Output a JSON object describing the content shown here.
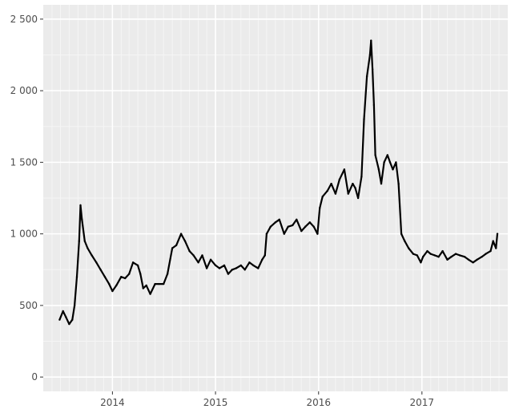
{
  "chart_data": {
    "type": "line",
    "title": "",
    "xlabel": "",
    "ylabel": "",
    "grid": true,
    "legend": "none",
    "xlim": [
      "2013-05-01",
      "2017-11-01"
    ],
    "ylim": [
      -100,
      2600
    ],
    "y_ticks": [
      0,
      500,
      1000,
      1500,
      2000,
      2500
    ],
    "y_tick_labels": [
      "0",
      "500",
      "1 000",
      "1 500",
      "2 000",
      "2 500"
    ],
    "x_ticks": [
      "2014-01-01",
      "2015-01-01",
      "2016-01-01",
      "2017-01-01"
    ],
    "x_tick_labels": [
      "2014",
      "2015",
      "2016",
      "2017"
    ],
    "colors": {
      "panel": "#ebebeb",
      "grid_major": "#ffffff",
      "grid_minor": "#f5f5f5",
      "line": "#000000",
      "tick_text": "#4d4d4d"
    },
    "series": [
      {
        "x": [
          "2013-06-28",
          "2013-07-10",
          "2013-07-20",
          "2013-08-01",
          "2013-08-12",
          "2013-08-20",
          "2013-08-28",
          "2013-09-05",
          "2013-09-10",
          "2013-09-15",
          "2013-09-25",
          "2013-10-05",
          "2013-10-20",
          "2013-11-05",
          "2013-11-20",
          "2013-12-05",
          "2013-12-20",
          "2014-01-01",
          "2014-01-15",
          "2014-02-01",
          "2014-02-15",
          "2014-03-01",
          "2014-03-15",
          "2014-04-01",
          "2014-04-10",
          "2014-04-20",
          "2014-05-01",
          "2014-05-15",
          "2014-06-01",
          "2014-06-15",
          "2014-07-01",
          "2014-07-15",
          "2014-08-01",
          "2014-08-15",
          "2014-09-01",
          "2014-09-15",
          "2014-10-01",
          "2014-10-15",
          "2014-11-01",
          "2014-11-15",
          "2014-12-01",
          "2014-12-15",
          "2015-01-01",
          "2015-01-15",
          "2015-02-01",
          "2015-02-15",
          "2015-03-01",
          "2015-03-15",
          "2015-04-01",
          "2015-04-15",
          "2015-05-01",
          "2015-05-15",
          "2015-06-01",
          "2015-06-15",
          "2015-06-25",
          "2015-07-01",
          "2015-07-15",
          "2015-08-01",
          "2015-08-15",
          "2015-09-01",
          "2015-09-15",
          "2015-10-01",
          "2015-10-15",
          "2015-11-01",
          "2015-11-15",
          "2015-12-01",
          "2015-12-15",
          "2015-12-28",
          "2016-01-05",
          "2016-01-15",
          "2016-02-01",
          "2016-02-15",
          "2016-03-01",
          "2016-03-15",
          "2016-04-01",
          "2016-04-15",
          "2016-05-01",
          "2016-05-10",
          "2016-05-20",
          "2016-06-01",
          "2016-06-10",
          "2016-06-20",
          "2016-07-01",
          "2016-07-05",
          "2016-07-10",
          "2016-07-15",
          "2016-07-20",
          "2016-08-01",
          "2016-08-10",
          "2016-08-20",
          "2016-09-01",
          "2016-09-10",
          "2016-09-20",
          "2016-10-01",
          "2016-10-10",
          "2016-10-20",
          "2016-11-01",
          "2016-11-15",
          "2016-12-01",
          "2016-12-15",
          "2016-12-28",
          "2017-01-05",
          "2017-01-20",
          "2017-02-01",
          "2017-02-15",
          "2017-03-01",
          "2017-03-15",
          "2017-04-01",
          "2017-04-15",
          "2017-05-01",
          "2017-05-15",
          "2017-06-01",
          "2017-06-15",
          "2017-07-01",
          "2017-07-15",
          "2017-08-01",
          "2017-08-15",
          "2017-09-01",
          "2017-09-10",
          "2017-09-20",
          "2017-09-25"
        ],
        "y": [
          400,
          460,
          420,
          370,
          400,
          500,
          700,
          950,
          1200,
          1100,
          950,
          900,
          850,
          800,
          750,
          700,
          650,
          600,
          640,
          700,
          690,
          720,
          800,
          780,
          720,
          620,
          640,
          580,
          650,
          650,
          650,
          720,
          900,
          920,
          1000,
          950,
          880,
          850,
          800,
          850,
          760,
          820,
          780,
          760,
          780,
          720,
          750,
          760,
          780,
          750,
          800,
          780,
          760,
          820,
          850,
          1000,
          1050,
          1080,
          1100,
          1000,
          1050,
          1060,
          1100,
          1020,
          1050,
          1080,
          1050,
          1000,
          1180,
          1260,
          1300,
          1350,
          1280,
          1380,
          1450,
          1280,
          1350,
          1320,
          1250,
          1400,
          1800,
          2100,
          2250,
          2350,
          2150,
          1900,
          1550,
          1450,
          1350,
          1500,
          1550,
          1500,
          1450,
          1500,
          1350,
          1000,
          950,
          900,
          860,
          850,
          800,
          840,
          880,
          860,
          850,
          840,
          880,
          820,
          840,
          860,
          850,
          840,
          820,
          800,
          820,
          840,
          860,
          880,
          950,
          900,
          1000
        ]
      }
    ]
  }
}
